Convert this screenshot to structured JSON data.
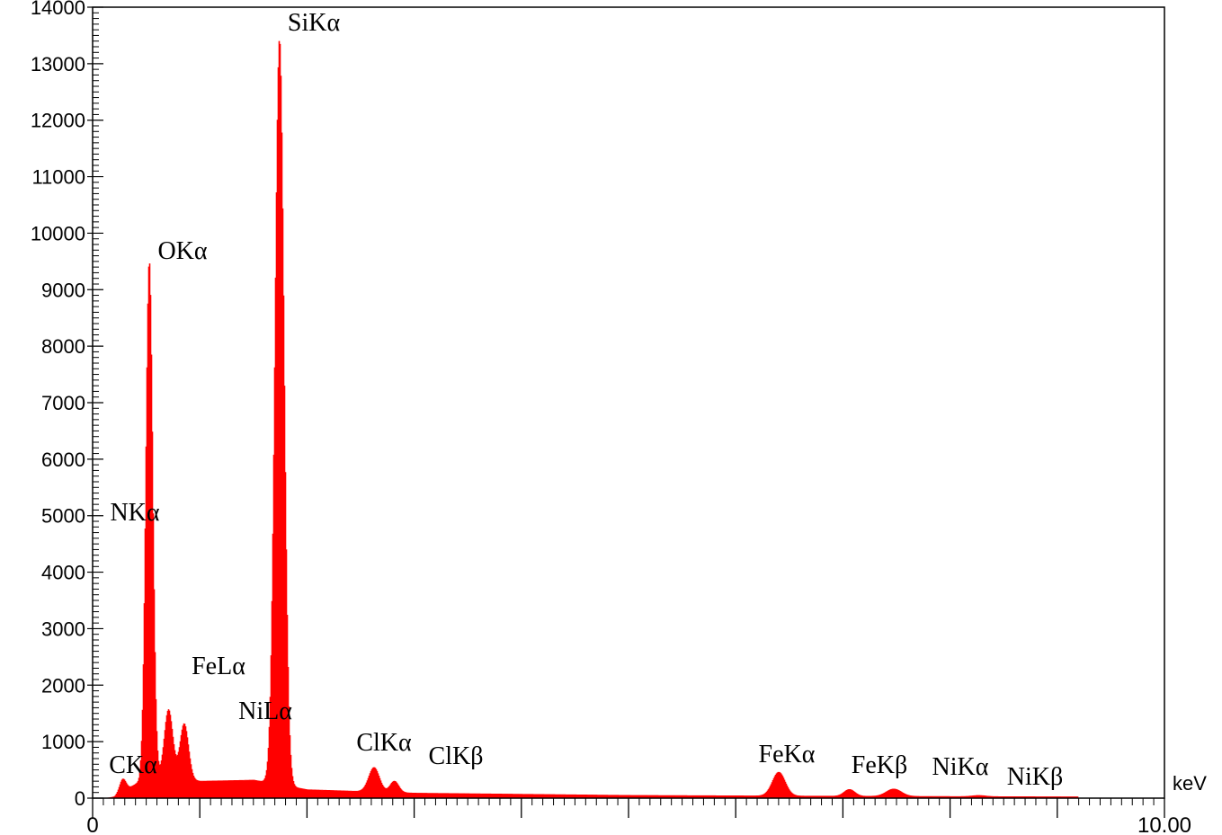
{
  "chart_data": {
    "type": "area",
    "title": "",
    "xlabel": "",
    "ylabel": "",
    "x_unit": "keV",
    "xlim": [
      0,
      10
    ],
    "ylim": [
      0,
      14000
    ],
    "grid": false,
    "series_color": "#ff0000",
    "y_ticks": [
      0,
      1000,
      2000,
      3000,
      4000,
      5000,
      6000,
      7000,
      8000,
      9000,
      10000,
      11000,
      12000,
      13000,
      14000
    ],
    "x_tick_labels": [
      {
        "value": 0,
        "label": "0"
      },
      {
        "value": 10,
        "label": "10.00"
      }
    ],
    "peaks": [
      {
        "label": "CKα",
        "x": 0.277,
        "y": 230,
        "width": 0.03
      },
      {
        "label": "NKα",
        "x": 0.392,
        "y": 0,
        "width": 0.03
      },
      {
        "label": "OKα",
        "x": 0.525,
        "y": 9200,
        "width": 0.032
      },
      {
        "label": "FeLα",
        "x": 0.705,
        "y": 1230,
        "width": 0.04
      },
      {
        "label": "NiLα",
        "x": 0.851,
        "y": 1000,
        "width": 0.04
      },
      {
        "label": "SiKα",
        "x": 1.74,
        "y": 13200,
        "width": 0.042
      },
      {
        "label": "ClKα",
        "x": 2.622,
        "y": 430,
        "width": 0.05
      },
      {
        "label": "ClKβ",
        "x": 2.812,
        "y": 200,
        "width": 0.04
      },
      {
        "label": "FeKα",
        "x": 6.398,
        "y": 420,
        "width": 0.06
      },
      {
        "label": "FeKβ",
        "x": 7.057,
        "y": 120,
        "width": 0.05
      },
      {
        "label": "NiKα",
        "x": 7.471,
        "y": 130,
        "width": 0.07
      },
      {
        "label": "NiKβ",
        "x": 8.264,
        "y": 20,
        "width": 0.06
      }
    ],
    "background": [
      {
        "x": 0.2,
        "y": 20
      },
      {
        "x": 0.4,
        "y": 250
      },
      {
        "x": 0.6,
        "y": 350
      },
      {
        "x": 1.0,
        "y": 300
      },
      {
        "x": 1.5,
        "y": 320
      },
      {
        "x": 2.0,
        "y": 150
      },
      {
        "x": 3.0,
        "y": 90
      },
      {
        "x": 5.0,
        "y": 50
      },
      {
        "x": 7.0,
        "y": 35
      },
      {
        "x": 9.0,
        "y": 25
      },
      {
        "x": 10.0,
        "y": 20
      }
    ]
  }
}
